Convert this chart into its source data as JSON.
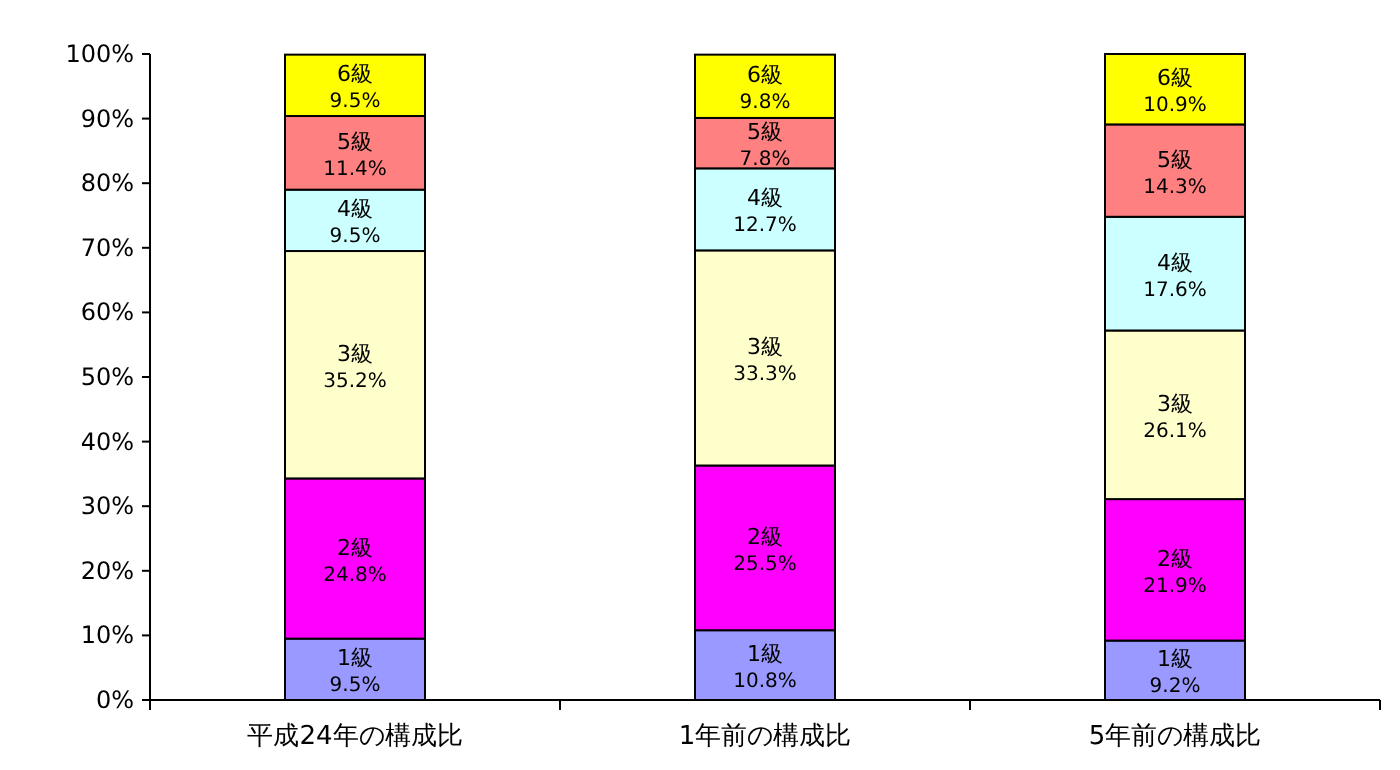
{
  "chart_data": {
    "type": "bar",
    "stacked": true,
    "categories": [
      "平成24年の構成比",
      "1年前の構成比",
      "5年前の構成比"
    ],
    "series": [
      {
        "name": "1級",
        "color": "#9999ff",
        "values": [
          9.5,
          10.8,
          9.2
        ],
        "value_labels": [
          "9.5%",
          "10.8%",
          "9.2%"
        ]
      },
      {
        "name": "2級",
        "color": "#ff00ff",
        "values": [
          24.8,
          25.5,
          21.9
        ],
        "value_labels": [
          "24.8%",
          "25.5%",
          "21.9%"
        ]
      },
      {
        "name": "3級",
        "color": "#ffffcc",
        "values": [
          35.2,
          33.3,
          26.1
        ],
        "value_labels": [
          "35.2%",
          "33.3%",
          "26.1%"
        ]
      },
      {
        "name": "4級",
        "color": "#ccffff",
        "values": [
          9.5,
          12.7,
          17.6
        ],
        "value_labels": [
          "9.5%",
          "12.7%",
          "17.6%"
        ]
      },
      {
        "name": "5級",
        "color": "#ff8080",
        "values": [
          11.4,
          7.8,
          14.3
        ],
        "value_labels": [
          "11.4%",
          "7.8%",
          "14.3%"
        ]
      },
      {
        "name": "6級",
        "color": "#ffff00",
        "values": [
          9.5,
          9.8,
          10.9
        ],
        "value_labels": [
          "9.5%",
          "9.8%",
          "10.9%"
        ]
      }
    ],
    "ylim": [
      0,
      100
    ],
    "yticks": [
      {
        "value": 0,
        "label": "0%"
      },
      {
        "value": 10,
        "label": "10%"
      },
      {
        "value": 20,
        "label": "20%"
      },
      {
        "value": 30,
        "label": "30%"
      },
      {
        "value": 40,
        "label": "40%"
      },
      {
        "value": 50,
        "label": "50%"
      },
      {
        "value": 60,
        "label": "60%"
      },
      {
        "value": 70,
        "label": "70%"
      },
      {
        "value": 80,
        "label": "80%"
      },
      {
        "value": 90,
        "label": "90%"
      },
      {
        "value": 100,
        "label": "100%"
      }
    ]
  }
}
